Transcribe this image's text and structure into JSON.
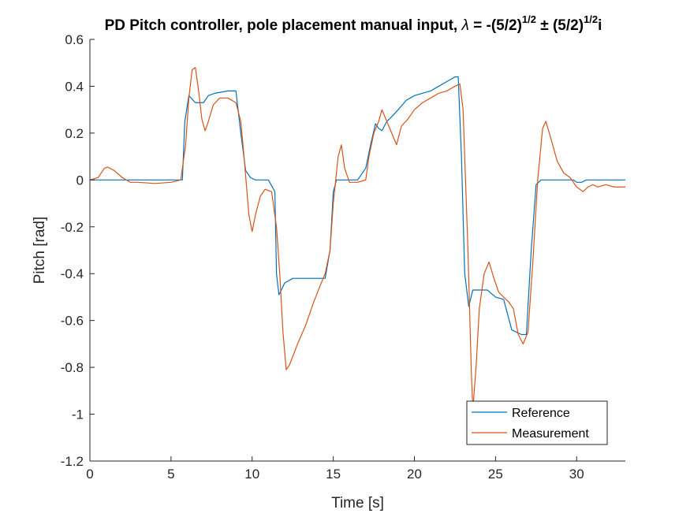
{
  "chart_data": {
    "type": "line",
    "title": {
      "prefix": "PD Pitch controller, pole placement manual input, ",
      "lambda": "λ",
      "eq": " = -(5/2)",
      "exp1": "1/2",
      "pm": " ± ",
      "base2": "(5/2)",
      "exp2": "1/2",
      "suffix": "i"
    },
    "xlabel": "Time [s]",
    "ylabel": "Pitch [rad]",
    "xlim": [
      0,
      33
    ],
    "ylim": [
      -1.2,
      0.6
    ],
    "xticks": [
      0,
      5,
      10,
      15,
      20,
      25,
      30
    ],
    "yticks": [
      -1.2,
      -1,
      -0.8,
      -0.6,
      -0.4,
      -0.2,
      0,
      0.2,
      0.4,
      0.6
    ],
    "grid": false,
    "legend_position": "bottom-right",
    "series": [
      {
        "name": "Reference",
        "color": "#0072BD",
        "x": [
          0,
          5.7,
          5.85,
          6.1,
          6.5,
          7.0,
          7.3,
          7.7,
          8.5,
          9.0,
          9.3,
          9.6,
          9.9,
          10.2,
          11.0,
          11.4,
          11.5,
          11.65,
          11.8,
          12.0,
          12.5,
          13.5,
          14.5,
          14.8,
          15.0,
          15.2,
          15.5,
          16.5,
          17.0,
          17.3,
          17.6,
          17.8,
          18.0,
          18.3,
          18.6,
          19.0,
          19.5,
          20.0,
          20.5,
          21.0,
          21.5,
          22.0,
          22.5,
          22.7,
          22.9,
          23.1,
          23.35,
          23.6,
          24.0,
          24.5,
          25.0,
          25.5,
          26.0,
          26.3,
          26.6,
          26.9,
          27.2,
          27.5,
          27.8,
          28.5,
          29.5,
          29.8,
          30.0,
          30.3,
          30.6,
          31.0,
          32.0,
          33.0
        ],
        "y": [
          0,
          0,
          0.25,
          0.36,
          0.33,
          0.33,
          0.36,
          0.37,
          0.38,
          0.38,
          0.2,
          0.04,
          0.01,
          0.0,
          0.0,
          -0.05,
          -0.4,
          -0.49,
          -0.47,
          -0.44,
          -0.42,
          -0.42,
          -0.42,
          -0.3,
          -0.05,
          0.0,
          0.0,
          0.0,
          0.05,
          0.15,
          0.24,
          0.22,
          0.21,
          0.25,
          0.27,
          0.3,
          0.34,
          0.36,
          0.37,
          0.38,
          0.4,
          0.42,
          0.44,
          0.44,
          0.1,
          -0.4,
          -0.54,
          -0.47,
          -0.47,
          -0.47,
          -0.5,
          -0.51,
          -0.64,
          -0.65,
          -0.66,
          -0.66,
          -0.3,
          -0.02,
          0.0,
          0.0,
          0.0,
          0.0,
          -0.01,
          -0.01,
          0.0,
          0.0,
          0.0,
          0.0
        ]
      },
      {
        "name": "Measurement",
        "color": "#D95319",
        "x": [
          0,
          0.5,
          0.9,
          1.1,
          1.5,
          2.0,
          2.5,
          3.0,
          4.0,
          5.0,
          5.6,
          5.9,
          6.1,
          6.3,
          6.5,
          6.7,
          6.9,
          7.1,
          7.3,
          7.6,
          8.0,
          8.5,
          9.0,
          9.3,
          9.5,
          9.8,
          10.0,
          10.2,
          10.5,
          10.8,
          11.2,
          11.5,
          11.7,
          11.9,
          12.1,
          12.3,
          12.8,
          13.3,
          13.8,
          14.2,
          14.5,
          14.8,
          15.0,
          15.3,
          15.5,
          15.7,
          16.0,
          16.5,
          17.0,
          17.2,
          17.5,
          17.8,
          18.0,
          18.3,
          18.6,
          18.9,
          19.2,
          19.6,
          20.0,
          20.5,
          21.0,
          21.5,
          22.0,
          22.5,
          22.8,
          23.0,
          23.3,
          23.5,
          23.6,
          23.8,
          24.0,
          24.3,
          24.6,
          24.9,
          25.2,
          25.5,
          25.8,
          26.1,
          26.4,
          26.7,
          27.0,
          27.3,
          27.6,
          27.9,
          28.1,
          28.4,
          28.8,
          29.2,
          29.6,
          30.0,
          30.4,
          30.7,
          31.0,
          31.3,
          31.8,
          32.3,
          33.0
        ],
        "y": [
          0,
          0.01,
          0.05,
          0.055,
          0.04,
          0.01,
          -0.01,
          -0.01,
          -0.015,
          -0.01,
          0.0,
          0.15,
          0.35,
          0.47,
          0.48,
          0.38,
          0.26,
          0.21,
          0.25,
          0.32,
          0.35,
          0.35,
          0.33,
          0.25,
          0.1,
          -0.15,
          -0.22,
          -0.15,
          -0.07,
          -0.04,
          -0.05,
          -0.2,
          -0.4,
          -0.65,
          -0.81,
          -0.79,
          -0.7,
          -0.62,
          -0.52,
          -0.45,
          -0.4,
          -0.3,
          -0.1,
          0.1,
          0.15,
          0.05,
          -0.01,
          -0.01,
          0.0,
          0.1,
          0.2,
          0.25,
          0.3,
          0.25,
          0.2,
          0.15,
          0.23,
          0.26,
          0.3,
          0.33,
          0.35,
          0.37,
          0.38,
          0.4,
          0.41,
          0.3,
          -0.3,
          -0.8,
          -0.98,
          -0.8,
          -0.55,
          -0.4,
          -0.35,
          -0.42,
          -0.48,
          -0.5,
          -0.52,
          -0.55,
          -0.66,
          -0.7,
          -0.65,
          -0.35,
          0.0,
          0.22,
          0.25,
          0.18,
          0.08,
          0.03,
          0.01,
          -0.03,
          -0.05,
          -0.03,
          -0.02,
          -0.03,
          -0.02,
          -0.03,
          -0.03
        ]
      }
    ]
  }
}
